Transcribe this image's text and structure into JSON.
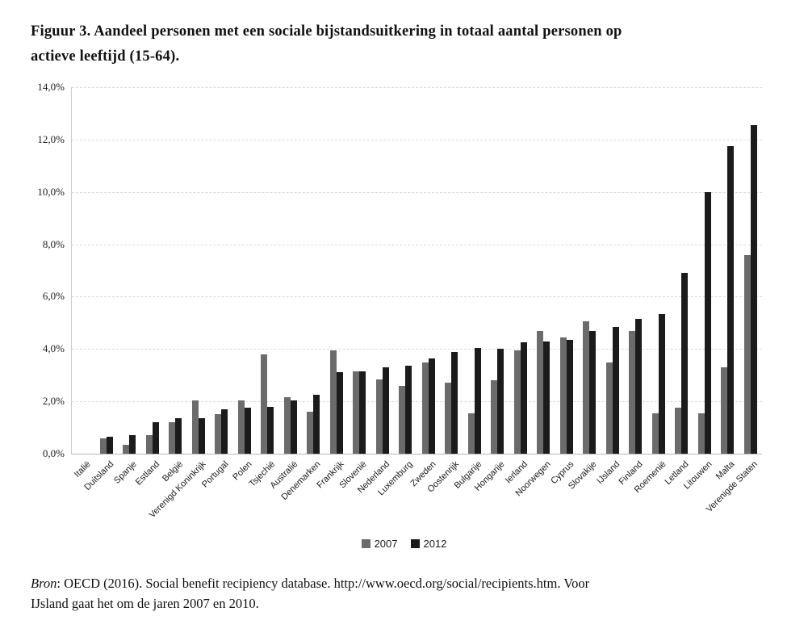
{
  "title": {
    "line1": "Figuur 3. Aandeel personen met een sociale bijstandsuitkering in totaal aantal personen op",
    "line2": "actieve leeftijd (15-64)."
  },
  "source": {
    "label_italic": "Bron",
    "line1_rest": ": OECD (2016). Social benefit recipiency database. http://www.oecd.org/social/recipients.htm. Voor",
    "line2": "IJsland gaat het om de jaren 2007 en 2010."
  },
  "chart_data": {
    "type": "bar",
    "title": "Aandeel personen met een sociale bijstandsuitkering in totaal aantal personen op actieve leeftijd (15-64)",
    "categories": [
      "Italië",
      "Duitsland",
      "Spanje",
      "Estland",
      "België",
      "Verenigd Koninkrijk",
      "Portugal",
      "Polen",
      "Tsjechië",
      "Australië",
      "Denemarken",
      "Frankrijk",
      "Slovenië",
      "Nederland",
      "Luxemburg",
      "Zweden",
      "Oostenrijk",
      "Bulgarije",
      "Hongarije",
      "Ierland",
      "Noorwegen",
      "Cyprus",
      "Slovakije",
      "IJsland",
      "Finland",
      "Roemenië",
      "Letland",
      "Litouwen",
      "Malta",
      "Verenigde Staten"
    ],
    "series": [
      {
        "name": "2007",
        "color": "#6b6b6b",
        "values": [
          0,
          0.6,
          0.35,
          0.7,
          1.2,
          2.05,
          1.5,
          2.05,
          3.8,
          2.15,
          1.6,
          3.95,
          3.15,
          2.85,
          2.6,
          3.5,
          2.7,
          1.55,
          2.8,
          3.95,
          4.7,
          4.45,
          5.05,
          3.5,
          4.7,
          1.55,
          1.75,
          1.55,
          3.3,
          7.6
        ]
      },
      {
        "name": "2012",
        "color": "#1b1b1b",
        "values": [
          0,
          0.65,
          0.7,
          1.2,
          1.35,
          1.35,
          1.7,
          1.75,
          1.8,
          2.05,
          2.25,
          3.1,
          3.15,
          3.3,
          3.35,
          3.65,
          3.9,
          4.05,
          4.0,
          4.25,
          4.3,
          4.35,
          4.7,
          4.85,
          5.15,
          5.35,
          6.9,
          10.0,
          11.75,
          12.55
        ]
      }
    ],
    "xlabel": "",
    "ylabel": "",
    "ylim": [
      0,
      14
    ],
    "yticks": [
      {
        "value": 0,
        "label": "0,0%"
      },
      {
        "value": 2,
        "label": "2,0%"
      },
      {
        "value": 4,
        "label": "4,0%"
      },
      {
        "value": 6,
        "label": "6,0%"
      },
      {
        "value": 8,
        "label": "8,0%"
      },
      {
        "value": 10,
        "label": "10,0%"
      },
      {
        "value": 12,
        "label": "12,0%"
      },
      {
        "value": 14,
        "label": "14,0%"
      }
    ],
    "grid": "horizontal-dashed",
    "legend_position": "bottom-center"
  }
}
